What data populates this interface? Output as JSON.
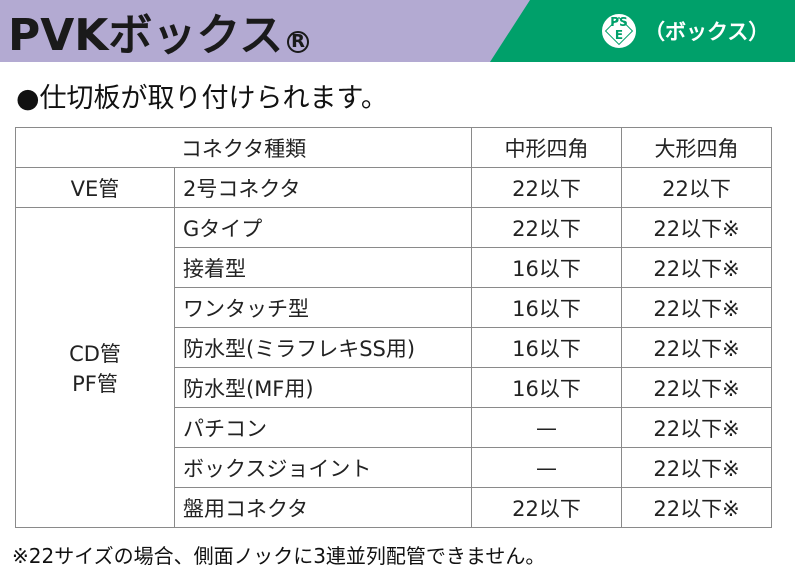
{
  "header": {
    "title": "PVKボックス",
    "trademark": "R",
    "certification_mark_text": "PS\nE",
    "certification_label": "（ボックス）",
    "colors": {
      "left_band": "#b3aad2",
      "right_band": "#00a06a"
    }
  },
  "subtitle": "●仕切板が取り付けられます。",
  "table": {
    "headers": [
      "コネクタ種類",
      "中形四角",
      "大形四角"
    ],
    "groups": [
      {
        "pipe_type": "VE管",
        "rows": [
          {
            "connector": "2号コネクタ",
            "medium": "22以下",
            "large": "22以下"
          }
        ]
      },
      {
        "pipe_type": "CD管\nPF管",
        "rows": [
          {
            "connector": "Gタイプ",
            "medium": "22以下",
            "large": "22以下※"
          },
          {
            "connector": "接着型",
            "medium": "16以下",
            "large": "22以下※"
          },
          {
            "connector": "ワンタッチ型",
            "medium": "16以下",
            "large": "22以下※"
          },
          {
            "connector": "防水型(ミラフレキSS用)",
            "medium": "16以下",
            "large": "22以下※"
          },
          {
            "connector": "防水型(MF用)",
            "medium": "16以下",
            "large": "22以下※"
          },
          {
            "connector": "パチコン",
            "medium": "—",
            "large": "22以下※"
          },
          {
            "connector": "ボックスジョイント",
            "medium": "—",
            "large": "22以下※"
          },
          {
            "connector": "盤用コネクタ",
            "medium": "22以下",
            "large": "22以下※"
          }
        ]
      }
    ]
  },
  "footnote": "※22サイズの場合、側面ノックに3連並列配管できません。"
}
